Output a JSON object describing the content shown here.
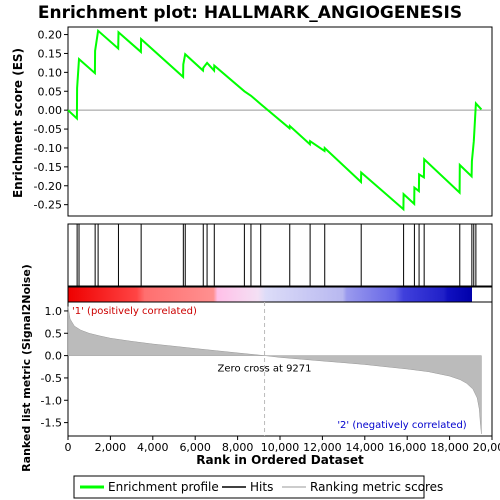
{
  "chart_data": {
    "type": "line",
    "title": "Enrichment plot: HALLMARK_ANGIOGENESIS",
    "xlabel": "Rank in Ordered Dataset",
    "ylabel_top": "Enrichment score (ES)",
    "ylabel_bottom": "Ranked list metric (Signal2Noise)",
    "xlim": [
      0,
      20000
    ],
    "x_ticks": [
      0,
      2000,
      4000,
      6000,
      8000,
      10000,
      12000,
      14000,
      16000,
      18000,
      20000
    ],
    "x_tick_labels": [
      "0",
      "2,000",
      "4,000",
      "6,000",
      "8,000",
      "10,000",
      "12,000",
      "14,000",
      "16,000",
      "18,000",
      "20,000"
    ],
    "es_ylim": [
      -0.28,
      0.22
    ],
    "es_ticks": [
      -0.25,
      -0.2,
      -0.15,
      -0.1,
      -0.05,
      0.0,
      0.05,
      0.1,
      0.15,
      0.2
    ],
    "es_tick_labels": [
      "-0.25",
      "-0.20",
      "-0.15",
      "-0.10",
      "-0.05",
      "0.00",
      "0.05",
      "0.10",
      "0.15",
      "0.20"
    ],
    "metric_ylim": [
      -1.8,
      1.2
    ],
    "metric_ticks": [
      -1.5,
      -1.0,
      -0.5,
      0.0,
      0.5,
      1.0
    ],
    "metric_tick_labels": [
      "-1.5",
      "-1.0",
      "-0.5",
      "0.0",
      "0.5",
      "1.0"
    ],
    "hits": [
      430,
      520,
      1280,
      1420,
      2380,
      3450,
      5440,
      5530,
      6380,
      6560,
      6900,
      8320,
      8630,
      9090,
      10460,
      11420,
      12110,
      13830,
      15830,
      16340,
      16560,
      16800,
      18480,
      19050,
      19140,
      19240
    ],
    "enrichment_profile": {
      "x": [
        0,
        420,
        430,
        520,
        1270,
        1280,
        1420,
        2370,
        2380,
        3440,
        3450,
        5430,
        5440,
        5530,
        6370,
        6380,
        6560,
        6890,
        6900,
        8320,
        8630,
        9090,
        10450,
        10460,
        11410,
        11420,
        12100,
        12110,
        13820,
        13830,
        15820,
        15830,
        16330,
        16340,
        16550,
        16560,
        16790,
        16800,
        18470,
        18480,
        19040,
        19050,
        19140,
        19240,
        19500
      ],
      "y": [
        0.0,
        -0.022,
        0.058,
        0.135,
        0.098,
        0.157,
        0.21,
        0.163,
        0.206,
        0.154,
        0.188,
        0.088,
        0.121,
        0.148,
        0.105,
        0.112,
        0.125,
        0.105,
        0.118,
        0.05,
        0.038,
        0.016,
        -0.048,
        -0.042,
        -0.09,
        -0.082,
        -0.108,
        -0.1,
        -0.19,
        -0.165,
        -0.262,
        -0.222,
        -0.248,
        -0.205,
        -0.214,
        -0.17,
        -0.178,
        -0.13,
        -0.218,
        -0.145,
        -0.175,
        -0.135,
        -0.082,
        0.018,
        0.002
      ]
    },
    "ranked_metric": {
      "x": [
        0,
        100,
        300,
        600,
        1000,
        1500,
        2000,
        3000,
        4000,
        5000,
        6000,
        7000,
        8000,
        9271,
        10000,
        11000,
        12000,
        13000,
        14000,
        15000,
        16000,
        17000,
        17500,
        18000,
        18500,
        18800,
        19100,
        19300,
        19400,
        19450,
        19500
      ],
      "y": [
        1.1,
        0.82,
        0.66,
        0.57,
        0.5,
        0.44,
        0.39,
        0.32,
        0.26,
        0.21,
        0.16,
        0.11,
        0.06,
        0.0,
        -0.04,
        -0.08,
        -0.12,
        -0.16,
        -0.2,
        -0.25,
        -0.3,
        -0.36,
        -0.41,
        -0.46,
        -0.54,
        -0.62,
        -0.75,
        -0.95,
        -1.2,
        -1.5,
        -1.75
      ]
    },
    "zero_cross_label": "Zero cross at 9271",
    "zero_cross_x": 9271,
    "pos_label": "'1' (positively correlated)",
    "neg_label": "'2' (negatively correlated)",
    "legend": [
      {
        "name": "Enrichment profile",
        "color": "#00ff00"
      },
      {
        "name": "Hits",
        "color": "#000000"
      },
      {
        "name": "Ranking metric scores",
        "color": "#bbbbbb"
      }
    ],
    "colors": {
      "profile": "#00ff00",
      "hit": "#000000",
      "metric_fill": "#bbbbbb",
      "zero_line": "#bbbbbb"
    }
  }
}
